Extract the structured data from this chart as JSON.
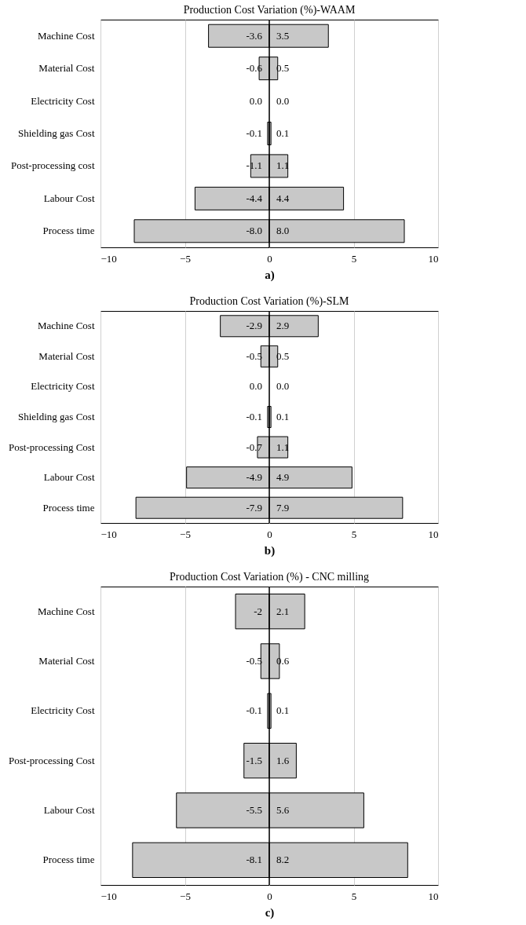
{
  "chart_data": [
    {
      "type": "bar",
      "orientation": "horizontal",
      "stacked": true,
      "title": "Production Cost Variation (%)-WAAM",
      "categories": [
        "Machine Cost",
        "Material Cost",
        "Electricity Cost",
        "Shielding gas Cost",
        "Post-processing cost",
        "Labour Cost",
        "Process time"
      ],
      "series": [
        {
          "color": "#c8c8c8",
          "values": [
            -3.6,
            -0.6,
            0.0,
            -0.1,
            -1.1,
            -4.4,
            -8.0
          ],
          "value_labels": [
            "-3.6",
            "-0.6",
            "0.0",
            "-0.1",
            "-1.1",
            "-4.4",
            "-8.0"
          ]
        },
        {
          "color": "#c8c8c8",
          "values": [
            3.5,
            0.5,
            0.0,
            0.1,
            1.1,
            4.4,
            8.0
          ],
          "value_labels": [
            "3.5",
            "0.5",
            "0.0",
            "0.1",
            "1.1",
            "4.4",
            "8.0"
          ]
        }
      ],
      "xlim": [
        -10,
        10
      ],
      "xticks": [
        -10,
        -5,
        0,
        5,
        10
      ],
      "grid": "x",
      "ref_lines": [
        {
          "axis": "x",
          "value": 0,
          "color": "#000000"
        }
      ],
      "annotations": [
        "a)"
      ]
    },
    {
      "type": "bar",
      "orientation": "horizontal",
      "stacked": true,
      "title": "Production Cost Variation (%)-SLM",
      "categories": [
        "Machine Cost",
        "Material Cost",
        "Electricity Cost",
        "Shielding gas Cost",
        "Post-processing Cost",
        "Labour Cost",
        "Process time"
      ],
      "series": [
        {
          "color": "#c8c8c8",
          "values": [
            -2.9,
            -0.5,
            0.0,
            -0.1,
            -0.7,
            -4.9,
            -7.9
          ],
          "value_labels": [
            "-2.9",
            "-0.5",
            "0.0",
            "-0.1",
            "-0.7",
            "-4.9",
            "-7.9"
          ]
        },
        {
          "color": "#c8c8c8",
          "values": [
            2.9,
            0.5,
            0.0,
            0.1,
            1.1,
            4.9,
            7.9
          ],
          "value_labels": [
            "2.9",
            "0.5",
            "0.0",
            "0.1",
            "1.1",
            "4.9",
            "7.9"
          ]
        }
      ],
      "xlim": [
        -10,
        10
      ],
      "xticks": [
        -10,
        -5,
        0,
        5,
        10
      ],
      "grid": "x",
      "ref_lines": [
        {
          "axis": "x",
          "value": 0,
          "color": "#000000"
        }
      ],
      "annotations": [
        "b)"
      ]
    },
    {
      "type": "bar",
      "orientation": "horizontal",
      "stacked": true,
      "title": "Production Cost Variation (%) - CNC milling",
      "categories": [
        "Machine Cost",
        "Material Cost",
        "Electricity Cost",
        "Post-processing Cost",
        "Labour Cost",
        "Process time"
      ],
      "series": [
        {
          "color": "#c8c8c8",
          "values": [
            -2,
            -0.5,
            -0.1,
            -1.5,
            -5.5,
            -8.1
          ],
          "value_labels": [
            "-2",
            "-0.5",
            "-0.1",
            "-1.5",
            "-5.5",
            "-8.1"
          ]
        },
        {
          "color": "#c8c8c8",
          "values": [
            2.1,
            0.6,
            0.1,
            1.6,
            5.6,
            8.2
          ],
          "value_labels": [
            "2.1",
            "0.6",
            "0.1",
            "1.6",
            "5.6",
            "8.2"
          ]
        }
      ],
      "xlim": [
        -10,
        10
      ],
      "xticks": [
        -10,
        -5,
        0,
        5,
        10
      ],
      "grid": "x",
      "ref_lines": [
        {
          "axis": "x",
          "value": 0,
          "color": "#000000"
        }
      ],
      "annotations": [
        "c)"
      ]
    }
  ]
}
